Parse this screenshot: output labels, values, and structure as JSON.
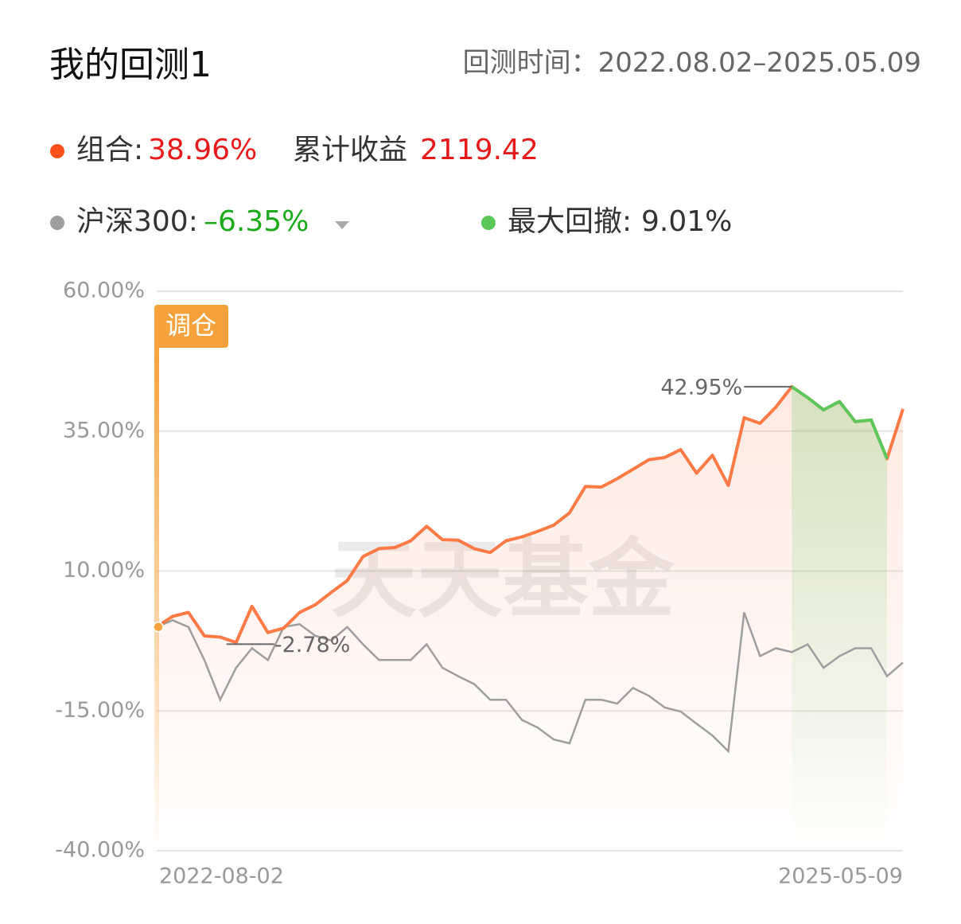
{
  "header": {
    "title": "我的回测1",
    "period_label": "回测时间：",
    "period": "2022.08.02–2025.05.09"
  },
  "chart_data": {
    "type": "line",
    "categories": [
      "2022-08-02",
      null,
      null,
      null,
      null,
      null,
      null,
      null,
      null,
      null,
      null,
      null,
      null,
      null,
      null,
      null,
      null,
      null,
      null,
      null,
      null,
      null,
      null,
      null,
      null,
      null,
      null,
      null,
      null,
      null,
      null,
      null,
      null,
      null,
      null,
      null,
      null,
      null,
      null,
      null,
      null,
      null,
      null,
      null,
      null,
      null,
      null,
      "2025-05-09"
    ],
    "series": [
      {
        "name": "组合:",
        "color": "#ff7a45",
        "return": 38.96,
        "return_label": "38.96%",
        "values": [
          0,
          1.9,
          2.6,
          -1.6,
          -1.8,
          -2.78,
          3.7,
          -1.0,
          -0.2,
          2.6,
          4.0,
          6.2,
          8.3,
          12.6,
          14.0,
          14.2,
          15.4,
          18.0,
          15.6,
          15.5,
          14.0,
          13.3,
          15.4,
          16.1,
          17.1,
          18.2,
          20.4,
          25.1,
          25.0,
          26.5,
          28.2,
          29.9,
          30.3,
          31.7,
          27.5,
          30.7,
          25.3,
          37.4,
          36.4,
          39.3,
          42.95,
          41.0,
          38.8,
          40.3,
          36.7,
          37.0,
          30.07,
          38.96
        ]
      },
      {
        "name": "沪深300:",
        "color": "#9e9e9e",
        "return": -6.35,
        "return_label": "–6.35%",
        "values": [
          0,
          1.2,
          0,
          -5.9,
          -13.0,
          -7.3,
          -3.8,
          -5.9,
          0,
          0.5,
          -1.6,
          -2.4,
          0,
          -3.1,
          -5.9,
          -5.9,
          -5.9,
          -3.1,
          -7.3,
          -8.8,
          -10.2,
          -13.0,
          -13.0,
          -16.6,
          -18.0,
          -20.1,
          -20.8,
          -13.0,
          -13.0,
          -13.7,
          -10.9,
          -12.3,
          -14.4,
          -15.1,
          -17.3,
          -19.4,
          -22.2,
          2.6,
          -5.2,
          -3.8,
          -4.5,
          -3.1,
          -7.3,
          -5.2,
          -3.8,
          -3.8,
          -8.8,
          -6.35
        ]
      }
    ],
    "cumulative_label": "累计收益",
    "cumulative_value": 2119.42,
    "drawdown": {
      "label": "最大回撤:",
      "value": 9.01,
      "value_label": "9.01%",
      "color": "#5cc85c"
    },
    "annotations": {
      "max": "42.95%",
      "min": "-2.78%"
    },
    "rebalance_label": "调仓",
    "watermark": "天天基金",
    "ylim": [
      -40,
      60
    ],
    "yticks": [
      {
        "value": -40,
        "label": "-40.00%"
      },
      {
        "value": -15,
        "label": "-15.00%"
      },
      {
        "value": 10,
        "label": "10.00%"
      },
      {
        "value": 35,
        "label": "35.00%"
      },
      {
        "value": 60,
        "label": "60.00%"
      }
    ],
    "grid": true
  }
}
